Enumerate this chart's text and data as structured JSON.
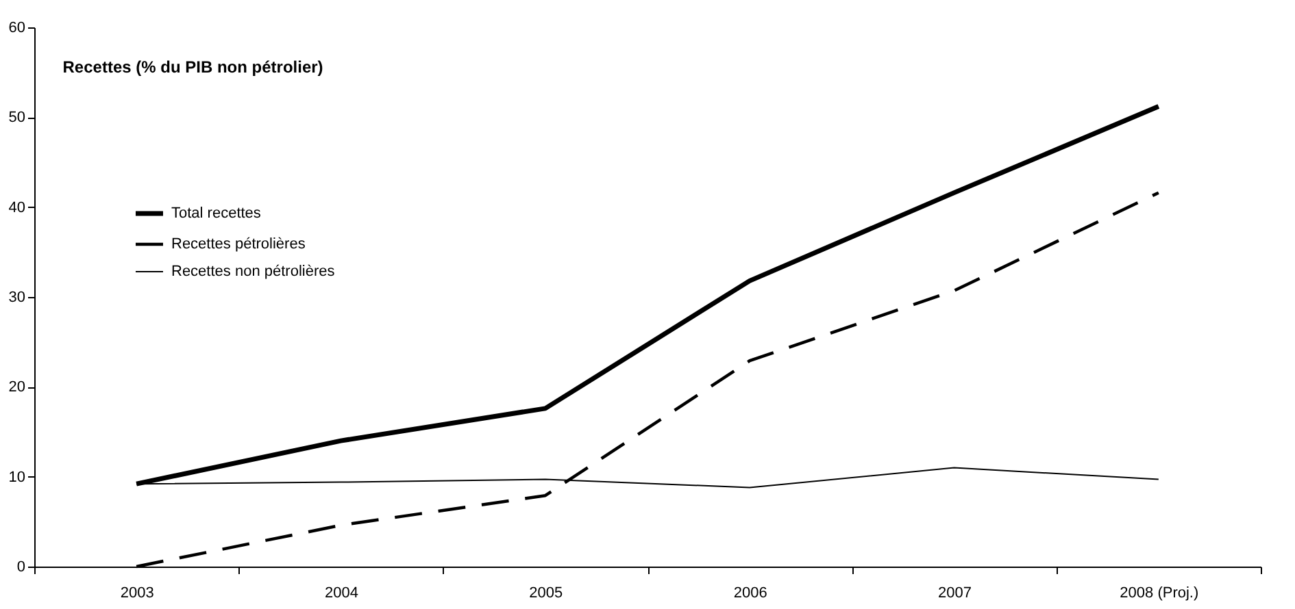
{
  "chart_data": {
    "type": "line",
    "title": "Recettes (% du PIB non pétrolier)",
    "categories": [
      "2003",
      "2004",
      "2005",
      "2006",
      "2007",
      "2008 (Proj.)"
    ],
    "series": [
      {
        "name": "Total recettes",
        "color": "#000000",
        "line_style": "solid",
        "values": [
          9.2,
          14.0,
          17.6,
          31.8,
          41.6,
          51.2
        ]
      },
      {
        "name": "Recettes pétrolières",
        "color": "#000000",
        "line_style": "dashed",
        "values": [
          0,
          4.6,
          7.9,
          22.9,
          30.7,
          41.6
        ]
      },
      {
        "name": "Recettes non pétrolières",
        "color": "#000000",
        "line_style": "solid",
        "values": [
          9.2,
          9.4,
          9.7,
          8.8,
          11.0,
          9.7
        ]
      }
    ],
    "ylim": [
      0,
      60
    ],
    "yticks": [
      0,
      10,
      20,
      30,
      40,
      50,
      60
    ],
    "grid": false,
    "legend": "top left",
    "marker": "none"
  }
}
